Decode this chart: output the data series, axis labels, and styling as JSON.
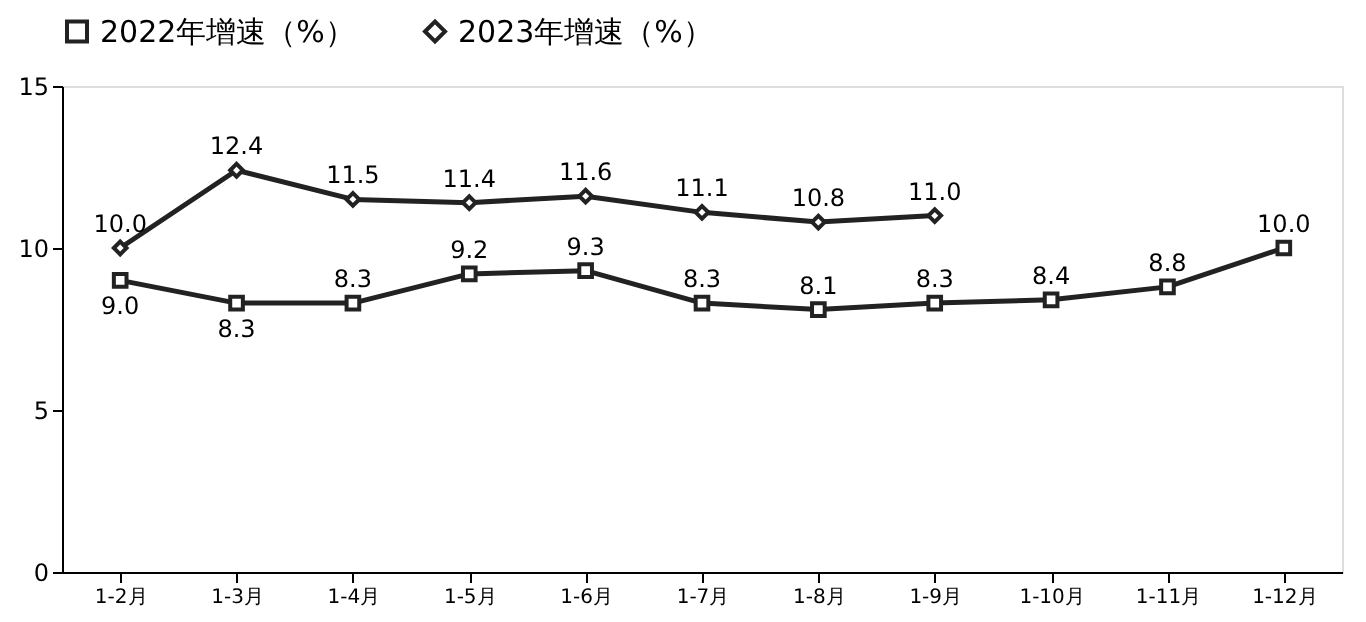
{
  "chart_data": {
    "type": "line",
    "categories": [
      "1-2月",
      "1-3月",
      "1-4月",
      "1-5月",
      "1-6月",
      "1-7月",
      "1-8月",
      "1-9月",
      "1-10月",
      "1-11月",
      "1-12月"
    ],
    "series": [
      {
        "name": "2022年增速（%）",
        "color": "#222222",
        "marker": "square",
        "values": [
          9.0,
          8.3,
          8.3,
          9.2,
          9.3,
          8.3,
          8.1,
          8.3,
          8.4,
          8.8,
          10.0
        ],
        "value_labels": [
          "9.0",
          "8.3",
          "8.3",
          "9.2",
          "9.3",
          "8.3",
          "8.1",
          "8.3",
          "8.4",
          "8.8",
          "10.0"
        ]
      },
      {
        "name": "2023年增速（%）",
        "color": "#222222",
        "marker": "diamond",
        "values": [
          10.0,
          12.4,
          11.5,
          11.4,
          11.6,
          11.1,
          10.8,
          11.0,
          null,
          null,
          null
        ],
        "value_labels": [
          "10.0",
          "12.4",
          "11.5",
          "11.4",
          "11.6",
          "11.1",
          "10.8",
          "11.0",
          null,
          null,
          null
        ]
      }
    ],
    "ylim": [
      0,
      15
    ],
    "yticks": [
      0,
      5,
      10,
      15
    ],
    "grid": false,
    "legend": "top",
    "line_style": "solid"
  }
}
